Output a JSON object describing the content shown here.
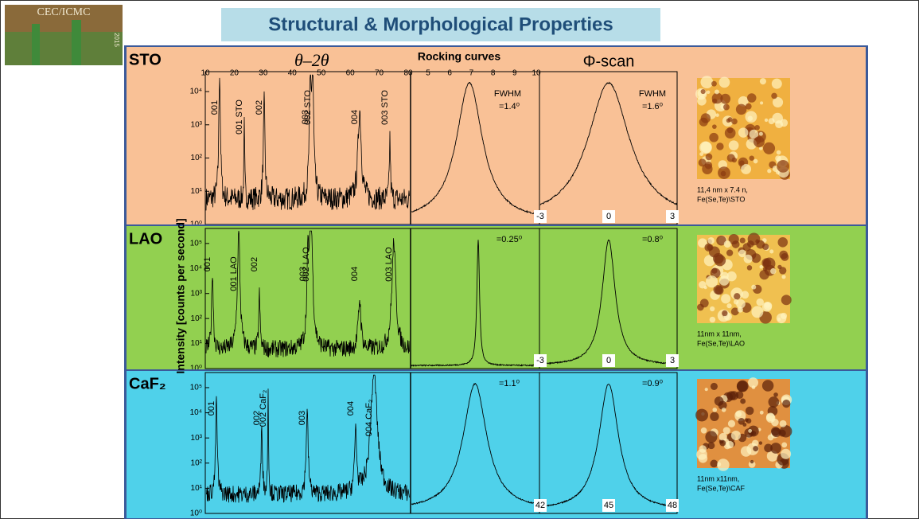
{
  "logo": {
    "name": "CEC/ICMC",
    "year": "2015"
  },
  "header": {
    "title": "Structural & Morphological Properties"
  },
  "columns": {
    "theta": "θ–2θ",
    "rocking": "Rocking curves",
    "phi": "Φ-scan"
  },
  "y_axis_label": "Intensity [counts per second]",
  "theta_ticks": [
    "10",
    "20",
    "30",
    "40",
    "50",
    "60",
    "70",
    "80"
  ],
  "rocking_ticks": [
    "5",
    "6",
    "7",
    "8",
    "9",
    "10"
  ],
  "rows": [
    {
      "label": "STO",
      "y_ticks": [
        "10⁰",
        "10¹",
        "10²",
        "10³",
        "10⁴"
      ],
      "peaks": [
        "001",
        "001 STO",
        "002",
        "003",
        "002 STO",
        "004",
        "003 STO"
      ],
      "fwhm": "FWHM",
      "rocking_width": "=1.4⁰",
      "phi_width": "=1.6⁰",
      "phi_ticks": [
        "-3",
        "0",
        "3"
      ],
      "afm_caption": [
        "11,4 nm x 7.4 n,",
        "Fe(Se,Te)\\STO"
      ]
    },
    {
      "label": "LAO",
      "y_ticks": [
        "10⁰",
        "10¹",
        "10²",
        "10³",
        "10⁴",
        "10⁵"
      ],
      "peaks": [
        "001",
        "001 LAO",
        "002",
        "003",
        "002 LAO",
        "004",
        "003 LAO"
      ],
      "rocking_width": "=0.25⁰",
      "phi_width": "=0.8⁰",
      "phi_ticks": [
        "-3",
        "0",
        "3"
      ],
      "afm_caption": [
        "11nm x 11nm,",
        "Fe(Se,Te)\\LAO"
      ]
    },
    {
      "label": "CaF₂",
      "y_ticks": [
        "10⁰",
        "10¹",
        "10²",
        "10³",
        "10⁴",
        "10⁵"
      ],
      "peaks": [
        "001",
        "002",
        "002 CaF₂",
        "003",
        "004",
        "004 CaF₂"
      ],
      "rocking_width": "=1.1⁰",
      "phi_width": "=0.9⁰",
      "phi_ticks": [
        "42",
        "45",
        "48"
      ],
      "afm_caption": [
        "11nm x11nm,",
        "Fe(Se,Te)\\CAF"
      ]
    }
  ]
}
